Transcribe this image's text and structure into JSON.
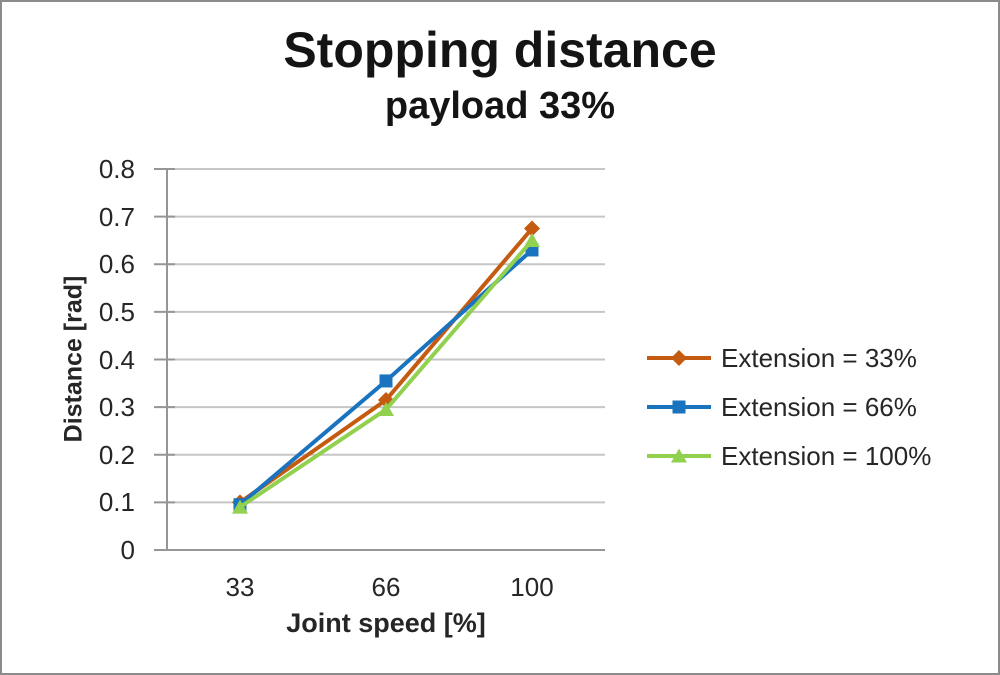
{
  "window": {
    "background": "#FFFFFF",
    "border_color": "#8C8C8C"
  },
  "chart_data": {
    "type": "line",
    "title": "Stopping distance",
    "subtitle": "payload 33%",
    "xlabel": "Joint speed [%]",
    "ylabel": "Distance [rad]",
    "categories": [
      "33",
      "66",
      "100"
    ],
    "ylim": [
      0,
      0.8
    ],
    "ytick_labels": [
      "0",
      "0.1",
      "0.2",
      "0.3",
      "0.4",
      "0.5",
      "0.6",
      "0.7",
      "0.8"
    ],
    "grid": true,
    "legend_position": "right",
    "series": [
      {
        "name": "Extension = 33%",
        "marker": "diamond",
        "color": "#C55A11",
        "values": [
          0.1,
          0.315,
          0.675
        ]
      },
      {
        "name": "Extension = 66%",
        "marker": "square",
        "color": "#1973BE",
        "values": [
          0.095,
          0.355,
          0.63
        ]
      },
      {
        "name": "Extension = 100%",
        "marker": "triangle",
        "color": "#92D050",
        "values": [
          0.09,
          0.295,
          0.65
        ]
      }
    ],
    "style": {
      "grid_color": "#C6C6C6",
      "axis_color": "#969696",
      "text_color": "#262626",
      "title_color": "#141414"
    }
  }
}
